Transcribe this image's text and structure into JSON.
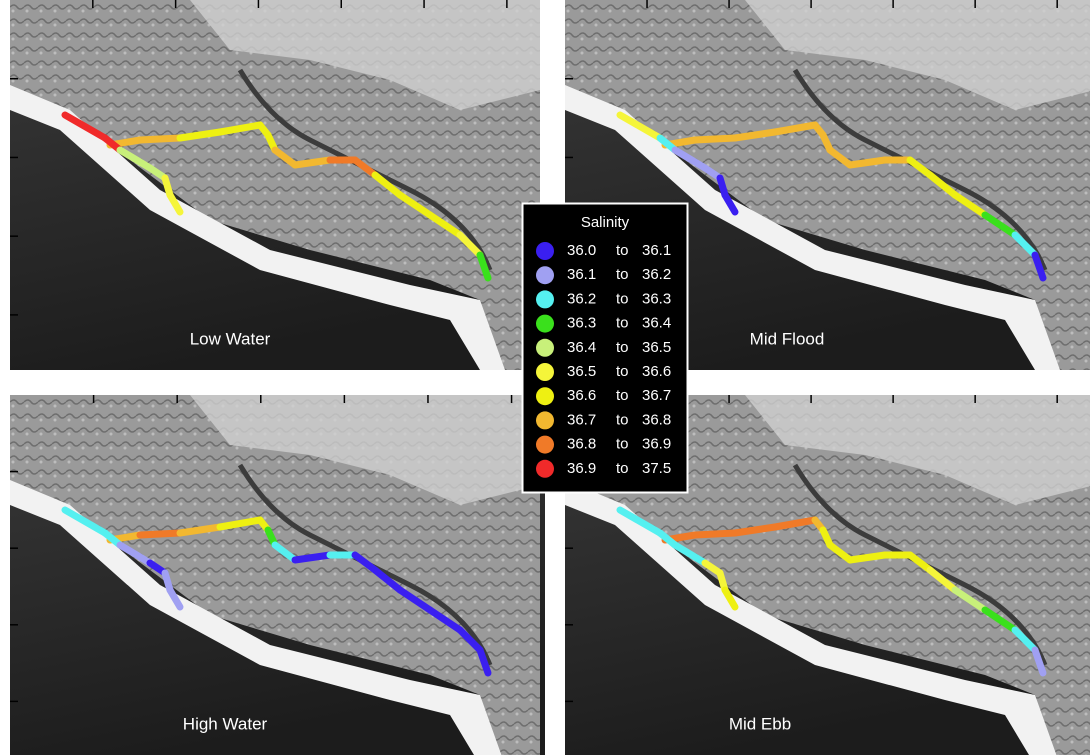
{
  "panels": [
    {
      "label": "Low Water"
    },
    {
      "label": "Mid Flood"
    },
    {
      "label": "High Water"
    },
    {
      "label": "Mid Ebb"
    }
  ],
  "legend": {
    "title": "Salinity",
    "separator": "to",
    "items": [
      {
        "from": "36.0",
        "to": "36.1",
        "color": "#3a1ff0"
      },
      {
        "from": "36.1",
        "to": "36.2",
        "color": "#a0a0f2"
      },
      {
        "from": "36.2",
        "to": "36.3",
        "color": "#55f0f0"
      },
      {
        "from": "36.3",
        "to": "36.4",
        "color": "#3ae01c"
      },
      {
        "from": "36.4",
        "to": "36.5",
        "color": "#c8f07a"
      },
      {
        "from": "36.5",
        "to": "36.6",
        "color": "#f5f53a"
      },
      {
        "from": "36.6",
        "to": "36.7",
        "color": "#eef012"
      },
      {
        "from": "36.7",
        "to": "36.8",
        "color": "#f2b830"
      },
      {
        "from": "36.8",
        "to": "36.9",
        "color": "#f07a28"
      },
      {
        "from": "36.9",
        "to": "37.5",
        "color": "#f02a2a"
      }
    ]
  }
}
